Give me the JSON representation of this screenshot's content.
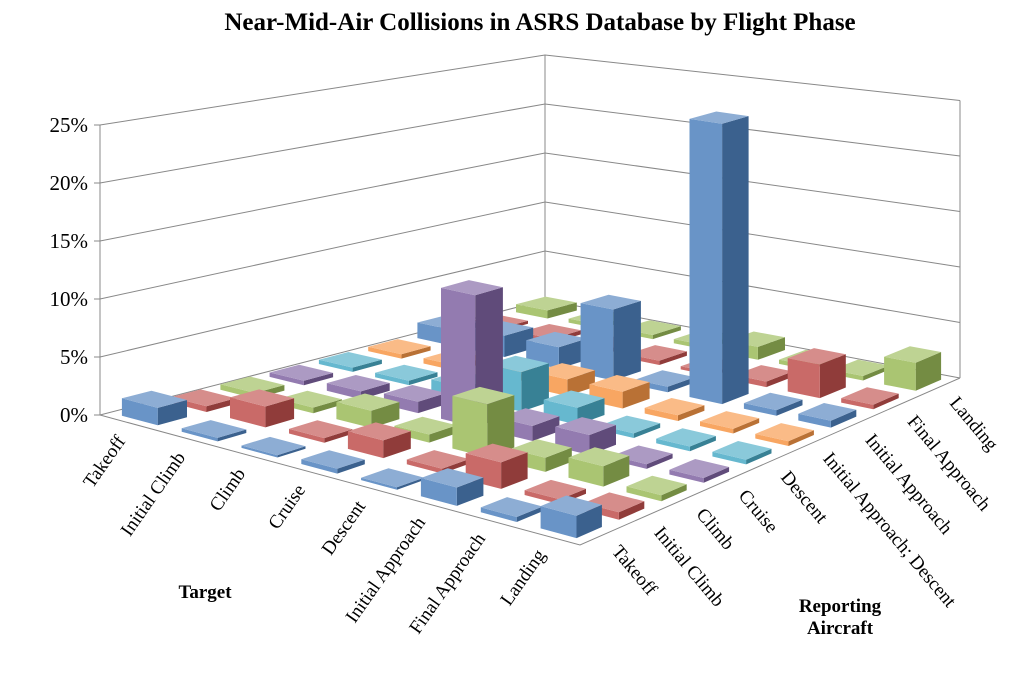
{
  "chart_data": {
    "type": "bar3d",
    "title": "Near-Mid-Air Collisions in ASRS Database by Flight Phase",
    "x_label": "Target",
    "z_label": "Reporting Aircraft",
    "categories": [
      "Takeoff",
      "Initial Climb",
      "Climb",
      "Cruise",
      "Descent",
      "Initial Approach",
      "Final Approach",
      "Landing"
    ],
    "ylim": [
      0,
      25
    ],
    "yticks": [
      {
        "value": 0,
        "label": "0%"
      },
      {
        "value": 5,
        "label": "5%"
      },
      {
        "value": 10,
        "label": "10%"
      },
      {
        "value": 15,
        "label": "15%"
      },
      {
        "value": 20,
        "label": "20%"
      },
      {
        "value": 25,
        "label": "25%"
      }
    ],
    "grid": true,
    "series": [
      {
        "name": "Takeoff",
        "color": "#4f81bd",
        "values": [
          1.5,
          0.3,
          0.2,
          0.4,
          0.2,
          1.5,
          0.4,
          1.8
        ]
      },
      {
        "name": "Initial Climb",
        "color": "#c0504d",
        "values": [
          0.5,
          1.8,
          0.4,
          1.5,
          0.4,
          2.2,
          0.4,
          0.6
        ]
      },
      {
        "name": "Climb",
        "color": "#9bbb59",
        "values": [
          0.5,
          0.5,
          1.5,
          0.7,
          4.5,
          1.2,
          1.7,
          0.5
        ]
      },
      {
        "name": "Cruise",
        "color": "#8064a2",
        "values": [
          0.4,
          0.7,
          1.0,
          11.5,
          1.3,
          1.7,
          0.4,
          0.4
        ]
      },
      {
        "name": "Descent",
        "color": "#4bacc6",
        "values": [
          0.4,
          0.4,
          1.0,
          3.5,
          1.5,
          0.4,
          0.4,
          0.4
        ]
      },
      {
        "name": "Initial Approach; Descent",
        "color": "#f79646",
        "values": [
          0.4,
          0.5,
          0.6,
          1.5,
          1.5,
          0.5,
          0.4,
          0.4
        ]
      },
      {
        "name": "Initial Approach",
        "color": "#4f81bd",
        "values": [
          1.5,
          2.0,
          2.0,
          6.5,
          0.5,
          25.0,
          0.5,
          0.6
        ]
      },
      {
        "name": "Final Approach",
        "color": "#c0504d",
        "values": [
          0.3,
          0.4,
          0.4,
          0.4,
          0.3,
          0.5,
          3.0,
          0.4
        ]
      },
      {
        "name": "Landing",
        "color": "#9bbb59",
        "values": [
          0.8,
          0.4,
          0.4,
          0.4,
          1.2,
          0.4,
          0.4,
          2.5
        ]
      }
    ]
  }
}
